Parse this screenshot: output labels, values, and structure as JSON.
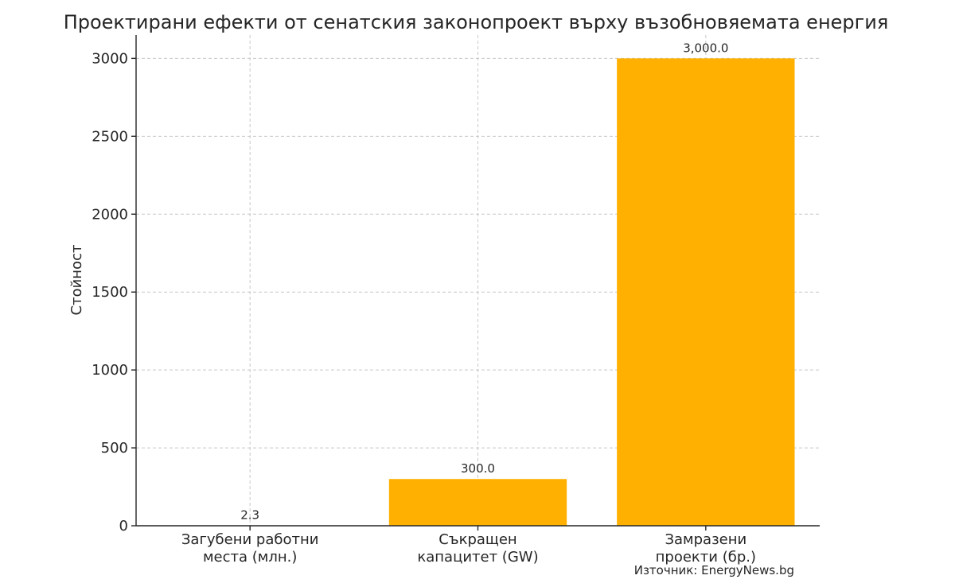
{
  "chart_data": {
    "type": "bar",
    "title": "Проектирани ефекти от сенатския законопроект върху възобновяемата енергия",
    "ylabel": "Стойност",
    "xlabel": "",
    "categories": [
      [
        "Загубени работни",
        "места (млн.)"
      ],
      [
        "Съкращен",
        "капацитет (GW)"
      ],
      [
        "Замразени",
        "проекти (бр.)"
      ]
    ],
    "values": [
      2.3,
      300.0,
      3000.0
    ],
    "data_labels": [
      "2.3",
      "300.0",
      "3,000.0"
    ],
    "ylim": [
      0,
      3150
    ],
    "yticks": [
      0,
      500,
      1000,
      1500,
      2000,
      2500,
      3000
    ],
    "grid": true,
    "bar_color": "#FFB000",
    "source": "Източник: EnergyNews.bg"
  }
}
